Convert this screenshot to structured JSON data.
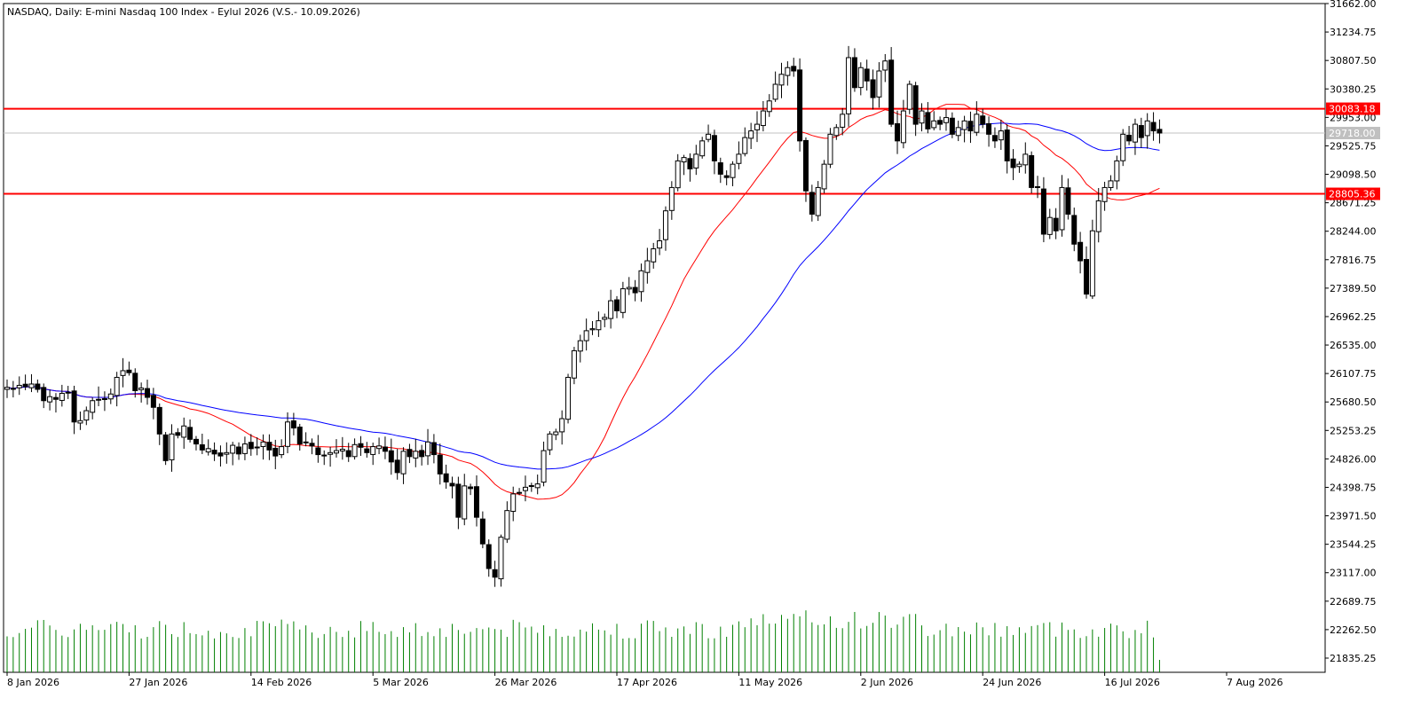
{
  "chart_data": {
    "type": "candlestick",
    "title": "NASDAQ, Daily:  E-mini Nasdaq 100 Index - Eylul 2026 (V.S.- 10.09.2026)",
    "ylim": [
      21622,
      31662
    ],
    "y_ticks": [
      "31662.00",
      "31234.75",
      "30807.50",
      "30380.25",
      "29953.00",
      "29525.75",
      "29098.50",
      "28671.25",
      "28244.00",
      "27816.75",
      "27389.50",
      "26962.25",
      "26535.00",
      "26107.75",
      "25680.50",
      "25253.25",
      "24826.00",
      "24398.75",
      "23971.50",
      "23544.25",
      "23117.00",
      "22689.75",
      "22262.50",
      "21835.25"
    ],
    "x_labels": [
      "8 Jan 2026",
      "27 Jan 2026",
      "14 Feb 2026",
      "5 Mar 2026",
      "26 Mar 2026",
      "17 Apr 2026",
      "11 May 2026",
      "2 Jun 2026",
      "24 Jun 2026",
      "16 Jul 2026",
      "7 Aug 2026"
    ],
    "x_label_bar_index": [
      0,
      20,
      40,
      60,
      80,
      100,
      120,
      140,
      160,
      180,
      200
    ],
    "horizontal_levels": [
      {
        "value": 30083.18,
        "label": "30083.18",
        "color": "#ff0000"
      },
      {
        "value": 28805.36,
        "label": "28805.36",
        "color": "#ff0000"
      }
    ],
    "current_price": {
      "value": 29718.0,
      "label": "29718.00",
      "color": "#c0c0c0"
    },
    "ma_colors": {
      "fast": "#ff0000",
      "slow": "#0000ff"
    },
    "volume_color": "#008000",
    "ohlc_daily_closes": [
      25900,
      25870,
      25930,
      25910,
      25950,
      25870,
      25700,
      25760,
      25720,
      25810,
      25820,
      25380,
      25400,
      25550,
      25700,
      25720,
      25730,
      25800,
      26050,
      26150,
      26120,
      25850,
      25890,
      25750,
      25600,
      25200,
      24800,
      25200,
      25180,
      25320,
      25120,
      25050,
      24960,
      24980,
      24900,
      24870,
      24920,
      25030,
      24900,
      25050,
      24980,
      25000,
      25080,
      24960,
      24870,
      25010,
      25380,
      25290,
      25050,
      25080,
      25020,
      24890,
      24880,
      24920,
      24950,
      24970,
      24860,
      25040,
      25000,
      24920,
      25010,
      25020,
      24940,
      24780,
      24620,
      24940,
      24860,
      24940,
      24860,
      25080,
      24890,
      24600,
      24480,
      24420,
      23950,
      24420,
      24380,
      23950,
      23550,
      23180,
      23050,
      23650,
      24050,
      24300,
      24320,
      24400,
      24420,
      24450,
      24950,
      25200,
      25230,
      25430,
      26050,
      26450,
      26600,
      26750,
      26780,
      26900,
      26950,
      27200,
      27050,
      27380,
      27400,
      27320,
      27650,
      27800,
      27980,
      28100,
      28550,
      28900,
      29300,
      29350,
      29180,
      29400,
      29600,
      29700,
      29300,
      29100,
      29050,
      29250,
      29400,
      29650,
      29750,
      29850,
      30050,
      30200,
      30450,
      30600,
      30700,
      30650,
      29600,
      28850,
      28500,
      28900,
      29250,
      29700,
      29800,
      30000,
      30850,
      30400,
      30700,
      30500,
      30250,
      30650,
      30800,
      29850,
      29600,
      30050,
      30450,
      29850,
      30050,
      29780,
      29900,
      29850,
      29950,
      29700,
      29800,
      29900,
      29750,
      30000,
      29850,
      29700,
      29600,
      29750,
      29300,
      29200,
      29250,
      29400,
      28900,
      28900,
      28200,
      28450,
      28250,
      28900,
      28500,
      28050,
      27800,
      27300,
      28250,
      28700,
      28900,
      29000,
      29300,
      29700,
      29600,
      29850,
      29650,
      29900,
      29750,
      29718
    ]
  }
}
